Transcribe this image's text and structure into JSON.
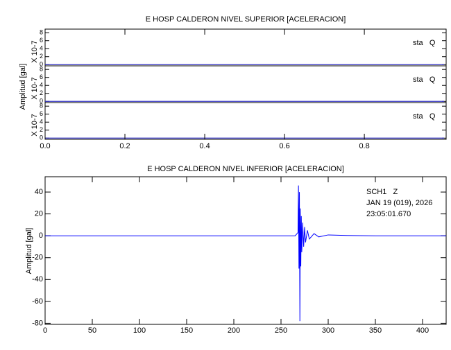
{
  "chart_data": [
    {
      "type": "line",
      "title": "E HOSP CALDERON NIVEL SUPERIOR [ACELERACION]",
      "y_label": "Amplitud [gal]",
      "color": "#3030c0",
      "panels": [
        {
          "label": "sta   Q",
          "scale_label": "X 10-7",
          "x": [
            0,
            1
          ],
          "values": [
            0,
            0
          ]
        },
        {
          "label": "sta   Q",
          "scale_label": "X 10-7",
          "x": [
            0,
            1
          ],
          "values": [
            0,
            0
          ]
        },
        {
          "label": "sta   Q",
          "scale_label": "X 10-7",
          "x": [
            0,
            1
          ],
          "values": [
            0,
            0
          ]
        }
      ],
      "xlim": [
        0,
        1.005
      ],
      "xticks": [
        {
          "value": 0,
          "label": "0.0"
        },
        0.2,
        0.4,
        0.6,
        0.8
      ],
      "ylim": [
        -0.3,
        8.9
      ],
      "yticks": [
        0,
        2,
        4,
        6,
        8
      ]
    },
    {
      "type": "line",
      "title": "E HOSP CALDERON NIVEL INFERIOR [ACELERACION]",
      "y_label": "Amplitud [gal]",
      "color": "#0000ff",
      "annotation": [
        "SCH1   Z",
        "JAN 19 (019), 2026",
        "23:05:01.670"
      ],
      "x": [
        0,
        100,
        200,
        265,
        268,
        268.5,
        269,
        269.5,
        270,
        270.5,
        271,
        271.5,
        272,
        273,
        274,
        275,
        276,
        278,
        280,
        285,
        290,
        300,
        320,
        350,
        425
      ],
      "values": [
        0,
        0,
        0,
        0,
        3,
        46,
        -30,
        40,
        -78,
        25,
        -28,
        18,
        -15,
        12,
        -10,
        8,
        -6,
        5,
        -3,
        2,
        -1,
        0.8,
        0.3,
        0,
        0
      ],
      "xlim": [
        0,
        425
      ],
      "xticks": [
        0,
        50,
        100,
        150,
        200,
        250,
        300,
        350,
        400
      ],
      "ylim": [
        -81,
        54
      ],
      "yticks": [
        -80,
        -60,
        -40,
        -20,
        0,
        20,
        40
      ]
    }
  ]
}
